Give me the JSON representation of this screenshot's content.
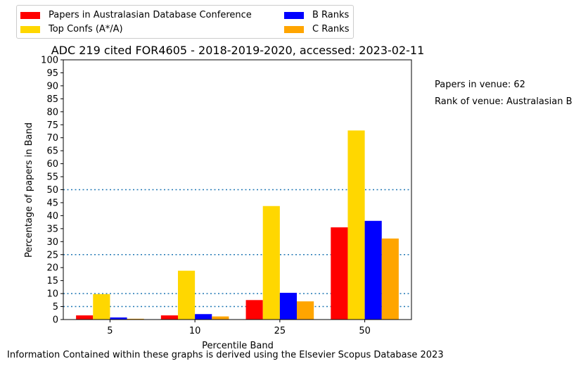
{
  "chart_data": {
    "type": "bar",
    "title": "ADC 219 cited FOR4605 - 2018-2019-2020, accessed: 2023-02-11",
    "xlabel": "Percentile Band",
    "ylabel": "Percentage of papers in Band",
    "categories": [
      "5",
      "10",
      "25",
      "50"
    ],
    "ylim": [
      0,
      100
    ],
    "yticks": [
      0,
      5,
      10,
      15,
      20,
      25,
      30,
      35,
      40,
      45,
      50,
      55,
      60,
      65,
      70,
      75,
      80,
      85,
      90,
      95,
      100
    ],
    "reference_lines": [
      5,
      10,
      25,
      50
    ],
    "grid": false,
    "legend_position": "top-left, outside plot",
    "series": [
      {
        "name": "Papers in Australasian Database Conference",
        "color": "#ff0000",
        "values": [
          1.6,
          1.6,
          7.5,
          35.5
        ]
      },
      {
        "name": "Top Confs (A*/A)",
        "color": "#ffd700",
        "values": [
          9.8,
          18.8,
          43.7,
          72.8
        ]
      },
      {
        "name": "B Ranks",
        "color": "#0000ff",
        "values": [
          0.8,
          2.1,
          10.3,
          38.0
        ]
      },
      {
        "name": "C Ranks",
        "color": "#ffa500",
        "values": [
          0.3,
          1.2,
          7.0,
          31.2
        ]
      }
    ],
    "annotations": [
      "Papers in venue: 62",
      "Rank of venue: Australasian B"
    ],
    "footer": "Information Contained within these graphs is derived using the Elsevier Scopus Database 2023"
  }
}
